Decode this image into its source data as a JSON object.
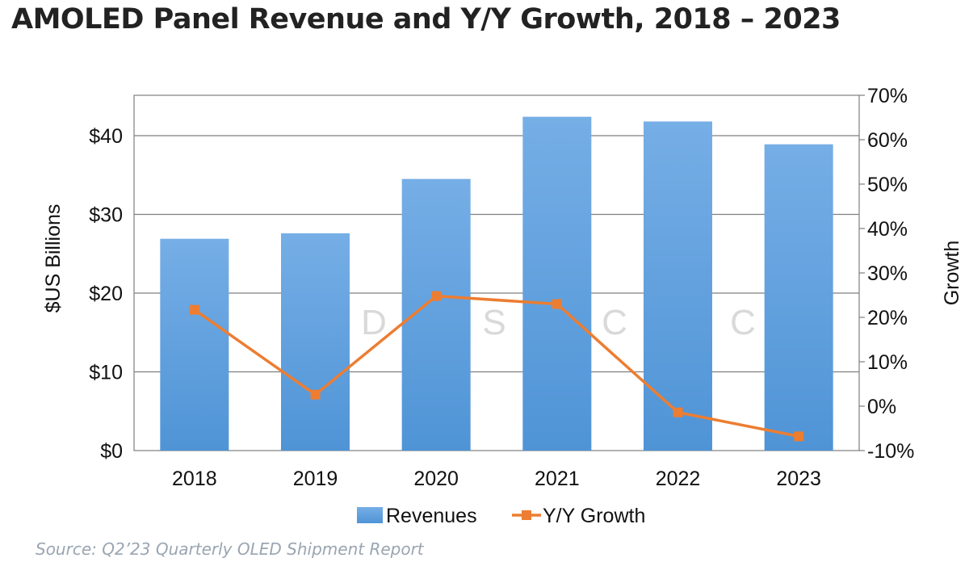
{
  "title": "AMOLED Panel Revenue and Y/Y Growth, 2018 – 2023",
  "source": "Source: Q2’23 Quarterly OLED Shipment Report",
  "watermark": [
    "D",
    "S",
    "C",
    "C"
  ],
  "colors": {
    "bar": "#4f94d6",
    "bar_light": "#76aee6",
    "line": "#ed7d31",
    "grid": "#7f7f7f"
  },
  "chart_data": {
    "type": "bar+line",
    "categories": [
      "2018",
      "2019",
      "2020",
      "2021",
      "2022",
      "2023"
    ],
    "series": [
      {
        "name": "Revenues",
        "type": "bar",
        "axis": "left",
        "values": [
          26.9,
          27.6,
          34.5,
          42.4,
          41.8,
          38.9
        ]
      },
      {
        "name": "Y/Y Growth",
        "type": "line",
        "axis": "right",
        "values": [
          21.7,
          2.6,
          24.8,
          23.0,
          -1.4,
          -6.8
        ]
      }
    ],
    "ylabel": "$US Billions",
    "ylabel_right": "Growth",
    "ylim": [
      0,
      40
    ],
    "ylim_right": [
      -10,
      70
    ],
    "yticks": [
      "$0",
      "$10",
      "$20",
      "$30",
      "$40"
    ],
    "yticks_right": [
      "-10%",
      "0%",
      "10%",
      "20%",
      "30%",
      "40%",
      "50%",
      "60%",
      "70%"
    ],
    "grid": true,
    "legend": "bottom"
  }
}
